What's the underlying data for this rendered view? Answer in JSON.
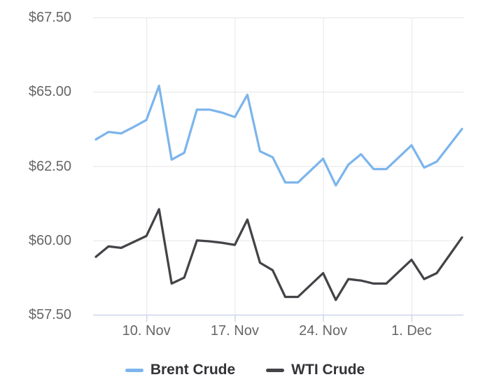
{
  "chart_data": {
    "type": "line",
    "title": "",
    "x_dates": [
      "6. Nov",
      "7. Nov",
      "8. Nov",
      "9. Nov",
      "10. Nov",
      "11. Nov",
      "12. Nov",
      "13. Nov",
      "14. Nov",
      "15. Nov",
      "16. Nov",
      "17. Nov",
      "18. Nov",
      "19. Nov",
      "20. Nov",
      "21. Nov",
      "22. Nov",
      "23. Nov",
      "24. Nov",
      "25. Nov",
      "26. Nov",
      "27. Nov",
      "28. Nov",
      "29. Nov",
      "30. Nov",
      "1. Dec",
      "2. Dec",
      "3. Dec",
      "4. Dec",
      "5. Dec"
    ],
    "x_tick_labels": [
      "10. Nov",
      "17. Nov",
      "24. Nov",
      "1. Dec"
    ],
    "x_tick_indices": [
      4,
      11,
      18,
      25
    ],
    "y_tick_labels": [
      "$67.50",
      "$65.00",
      "$62.50",
      "$60.00",
      "$57.50"
    ],
    "y_tick_values": [
      67.5,
      65.0,
      62.5,
      60.0,
      57.5
    ],
    "ylim": [
      57.5,
      67.5
    ],
    "grid": true,
    "legend_position": "bottom",
    "series": [
      {
        "name": "Brent Crude",
        "color": "#7cb5ec",
        "values": [
          63.4,
          63.65,
          63.6,
          63.82,
          64.05,
          65.2,
          62.72,
          62.95,
          64.4,
          64.4,
          64.3,
          64.15,
          64.9,
          63.0,
          62.8,
          61.95,
          61.95,
          62.35,
          62.75,
          61.85,
          62.55,
          62.9,
          62.4,
          62.4,
          62.8,
          63.2,
          62.45,
          62.65,
          63.2,
          63.75
        ]
      },
      {
        "name": "WTI Crude",
        "color": "#434348",
        "values": [
          59.45,
          59.8,
          59.75,
          59.95,
          60.15,
          61.05,
          58.55,
          58.75,
          60.0,
          59.97,
          59.92,
          59.85,
          60.7,
          59.25,
          59.0,
          58.1,
          58.1,
          58.5,
          58.9,
          58.0,
          58.7,
          58.65,
          58.55,
          58.55,
          58.95,
          59.35,
          58.7,
          58.9,
          59.5,
          60.1
        ]
      }
    ],
    "colors": {
      "grid": "#e6e6e6",
      "axis_line": "#ccd6eb",
      "tick": "#ccd6eb",
      "axis_label": "#666666",
      "legend_text": "#333337",
      "background": "#ffffff"
    }
  }
}
